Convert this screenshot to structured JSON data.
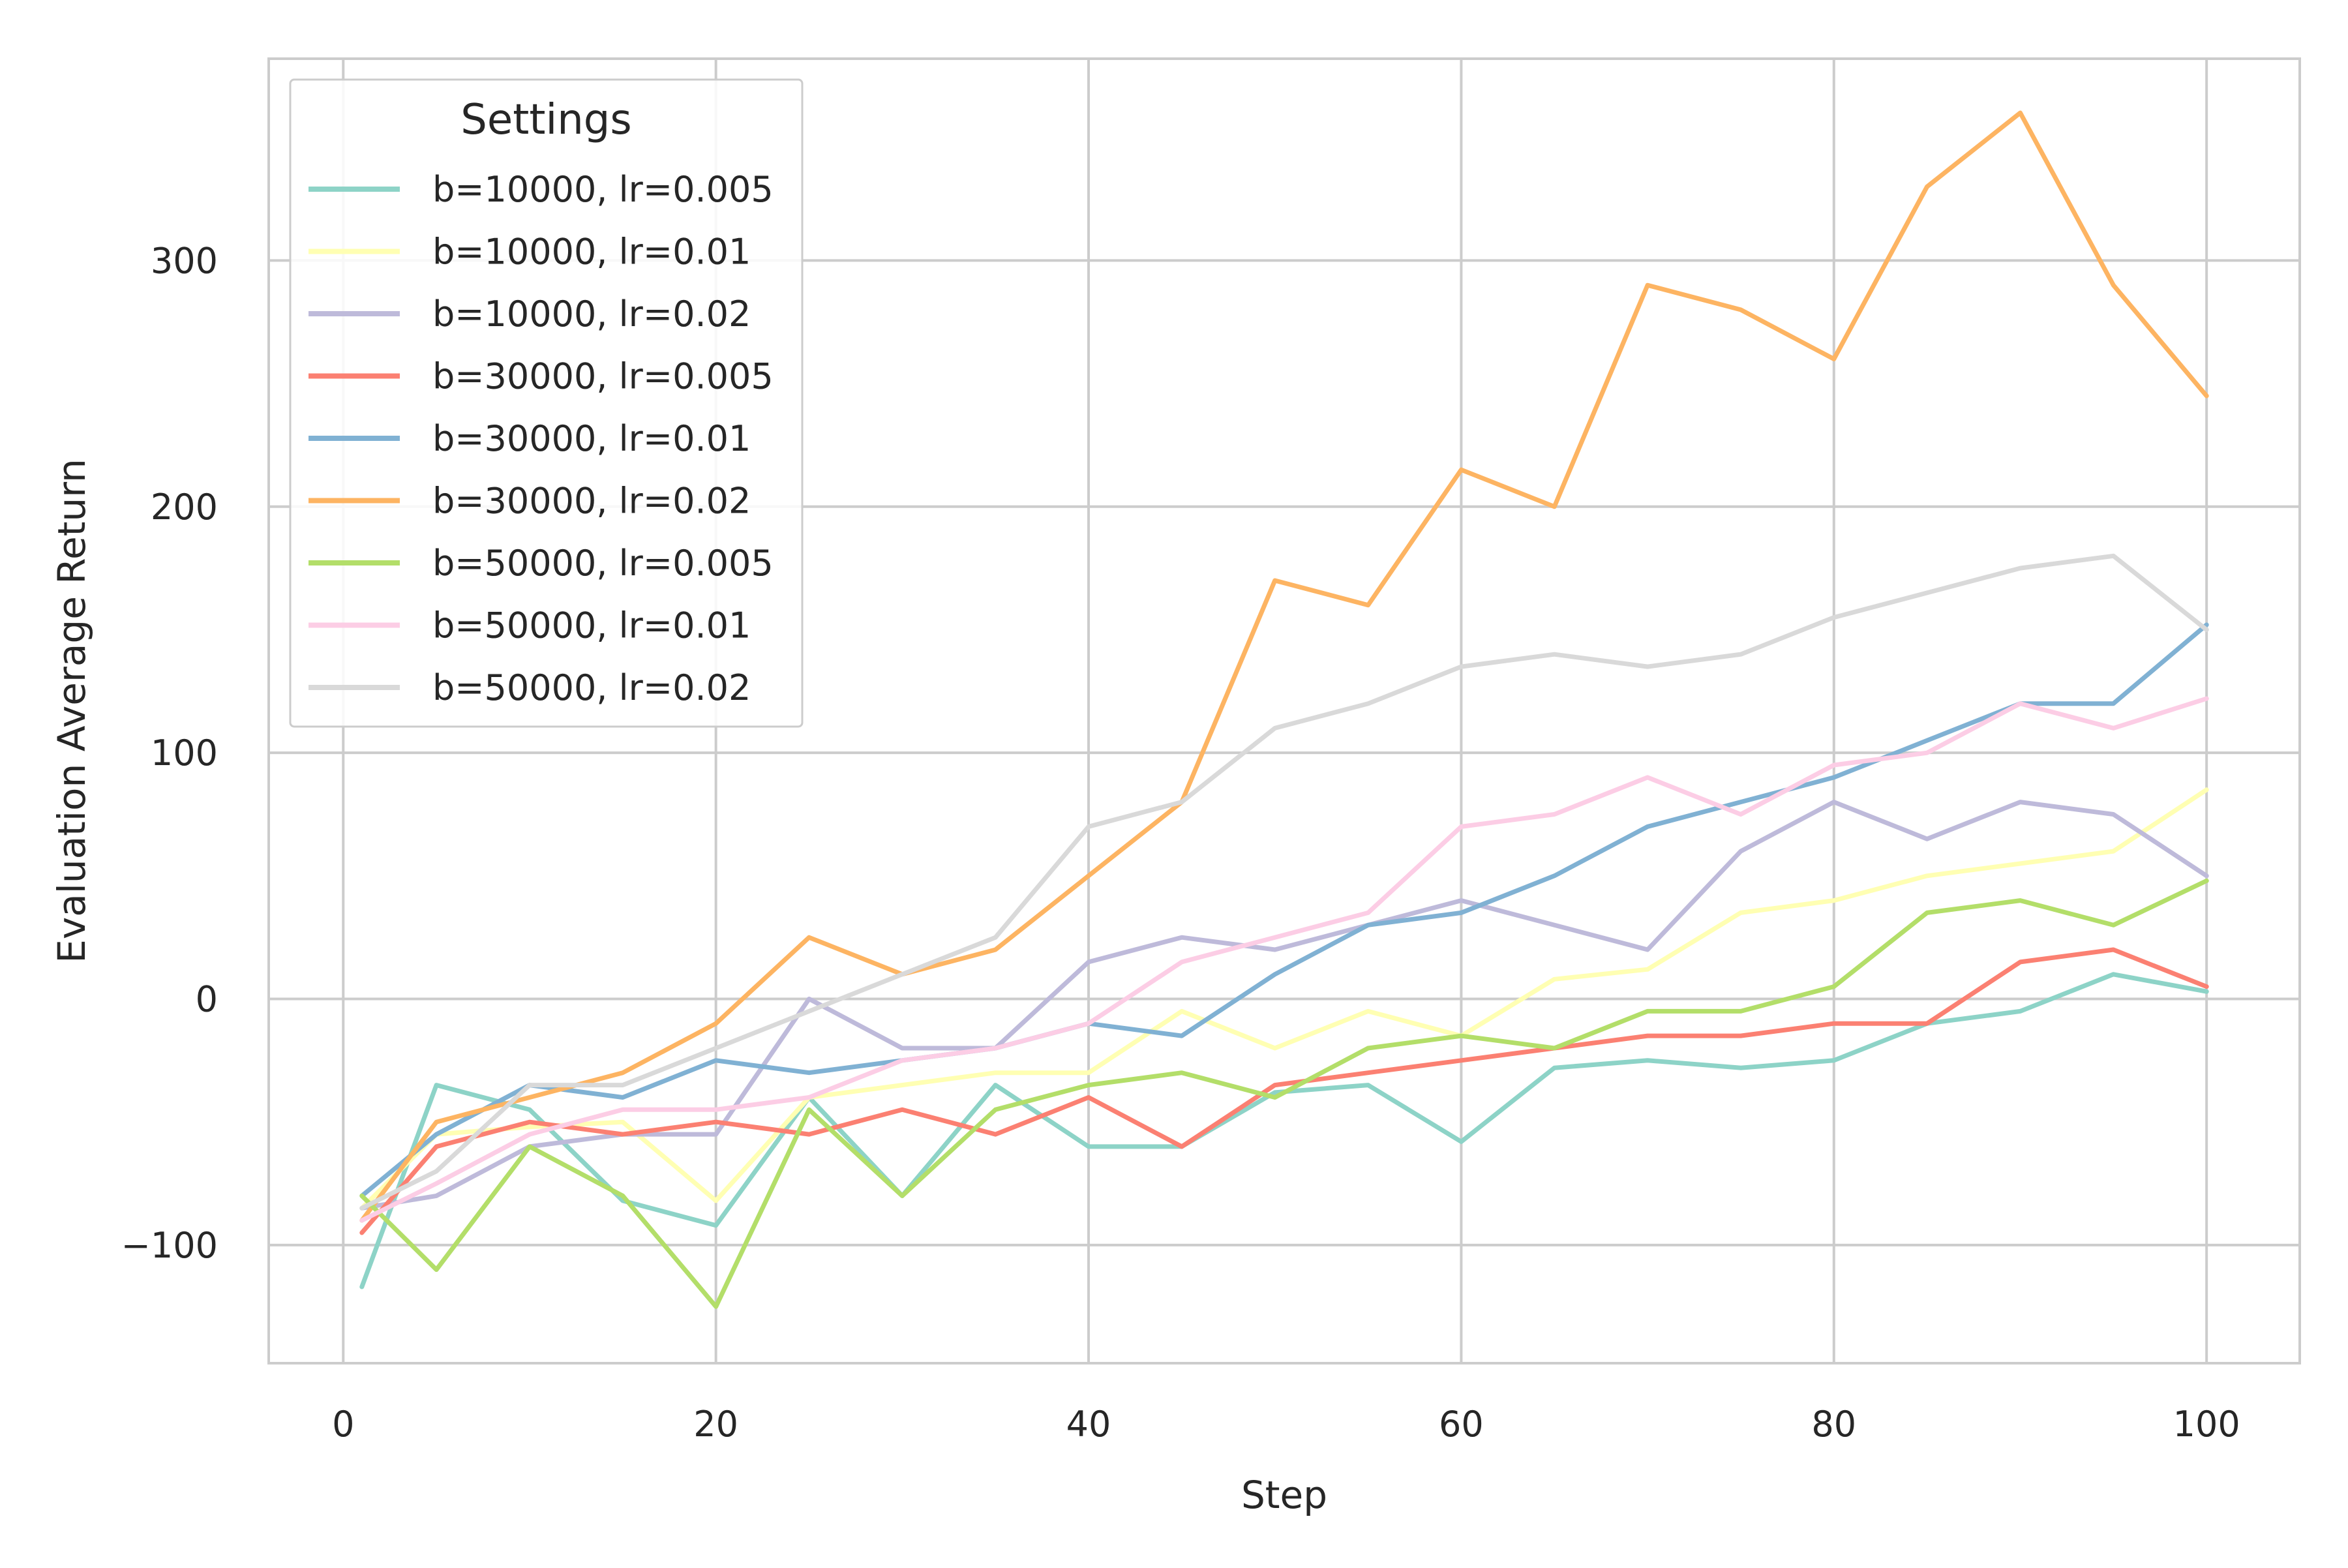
{
  "chart_data": {
    "type": "line",
    "title": "",
    "xlabel": "Step",
    "ylabel": "Evaluation Average Return",
    "xlim": [
      -4,
      105
    ],
    "ylim": [
      -148,
      382
    ],
    "xticks": [
      0,
      20,
      40,
      60,
      80,
      100
    ],
    "xtick_labels": [
      "0",
      "20",
      "40",
      "60",
      "80",
      "100"
    ],
    "yticks": [
      -100,
      0,
      100,
      200,
      300
    ],
    "ytick_labels": [
      "−100",
      "0",
      "100",
      "200",
      "300"
    ],
    "grid": true,
    "legend": {
      "title": "Settings",
      "placement": "top-left"
    },
    "series": [
      {
        "name": "b=10000, lr=0.005",
        "color": "#8dd3c7",
        "x": [
          1,
          5,
          10,
          15,
          20,
          25,
          30,
          35,
          40,
          45,
          50,
          55,
          60,
          65,
          70,
          75,
          80,
          85,
          90,
          95,
          100
        ],
        "values": [
          -117,
          -35,
          -45,
          -82,
          -92,
          -40,
          -80,
          -35,
          -60,
          -60,
          -38,
          -35,
          -58,
          -28,
          -25,
          -28,
          -25,
          -10,
          -5,
          10,
          3
        ]
      },
      {
        "name": "b=10000, lr=0.01",
        "color": "#ffffb3",
        "x": [
          1,
          5,
          10,
          15,
          20,
          25,
          30,
          35,
          40,
          45,
          50,
          55,
          60,
          65,
          70,
          75,
          80,
          85,
          90,
          95,
          100
        ],
        "values": [
          -85,
          -55,
          -52,
          -50,
          -82,
          -40,
          -35,
          -30,
          -30,
          -5,
          -20,
          -5,
          -15,
          8,
          12,
          35,
          40,
          50,
          55,
          60,
          85
        ]
      },
      {
        "name": "b=10000, lr=0.02",
        "color": "#bebada",
        "x": [
          1,
          5,
          10,
          15,
          20,
          25,
          30,
          35,
          40,
          45,
          50,
          55,
          60,
          65,
          70,
          75,
          80,
          85,
          90,
          95,
          100
        ],
        "values": [
          -85,
          -80,
          -60,
          -55,
          -55,
          0,
          -20,
          -20,
          15,
          25,
          20,
          30,
          40,
          30,
          20,
          60,
          80,
          65,
          80,
          75,
          50
        ]
      },
      {
        "name": "b=30000, lr=0.005",
        "color": "#fb8072",
        "x": [
          1,
          5,
          10,
          15,
          20,
          25,
          30,
          35,
          40,
          45,
          50,
          55,
          60,
          65,
          70,
          75,
          80,
          85,
          90,
          95,
          100
        ],
        "values": [
          -95,
          -60,
          -50,
          -55,
          -50,
          -55,
          -45,
          -55,
          -40,
          -60,
          -35,
          -30,
          -25,
          -20,
          -15,
          -15,
          -10,
          -10,
          15,
          20,
          5
        ]
      },
      {
        "name": "b=30000, lr=0.01",
        "color": "#80b1d3",
        "x": [
          1,
          5,
          10,
          15,
          20,
          25,
          30,
          35,
          40,
          45,
          50,
          55,
          60,
          65,
          70,
          75,
          80,
          85,
          90,
          95,
          100
        ],
        "values": [
          -80,
          -55,
          -35,
          -40,
          -25,
          -30,
          -25,
          -20,
          -10,
          -15,
          10,
          30,
          35,
          50,
          70,
          80,
          90,
          105,
          120,
          120,
          152
        ]
      },
      {
        "name": "b=30000, lr=0.02",
        "color": "#fdb462",
        "x": [
          1,
          5,
          10,
          15,
          20,
          25,
          30,
          35,
          40,
          45,
          50,
          55,
          60,
          65,
          70,
          75,
          80,
          85,
          90,
          95,
          100
        ],
        "values": [
          -90,
          -50,
          -40,
          -30,
          -10,
          25,
          10,
          20,
          50,
          80,
          170,
          160,
          215,
          200,
          290,
          280,
          260,
          330,
          360,
          290,
          245
        ]
      },
      {
        "name": "b=50000, lr=0.005",
        "color": "#b3de69",
        "x": [
          1,
          5,
          10,
          15,
          20,
          25,
          30,
          35,
          40,
          45,
          50,
          55,
          60,
          65,
          70,
          75,
          80,
          85,
          90,
          95,
          100
        ],
        "values": [
          -80,
          -110,
          -60,
          -80,
          -125,
          -45,
          -80,
          -45,
          -35,
          -30,
          -40,
          -20,
          -15,
          -20,
          -5,
          -5,
          5,
          35,
          40,
          30,
          48
        ]
      },
      {
        "name": "b=50000, lr=0.01",
        "color": "#fccde5",
        "x": [
          1,
          5,
          10,
          15,
          20,
          25,
          30,
          35,
          40,
          45,
          50,
          55,
          60,
          65,
          70,
          75,
          80,
          85,
          90,
          95,
          100
        ],
        "values": [
          -90,
          -75,
          -55,
          -45,
          -45,
          -40,
          -25,
          -20,
          -10,
          15,
          25,
          35,
          70,
          75,
          90,
          75,
          95,
          100,
          120,
          110,
          122
        ]
      },
      {
        "name": "b=50000, lr=0.02",
        "color": "#d9d9d9",
        "x": [
          1,
          5,
          10,
          15,
          20,
          25,
          30,
          35,
          40,
          45,
          50,
          55,
          60,
          65,
          70,
          75,
          80,
          85,
          90,
          95,
          100
        ],
        "values": [
          -85,
          -70,
          -35,
          -35,
          -20,
          -5,
          10,
          25,
          70,
          80,
          110,
          120,
          135,
          140,
          135,
          140,
          155,
          165,
          175,
          180,
          150
        ]
      }
    ]
  }
}
